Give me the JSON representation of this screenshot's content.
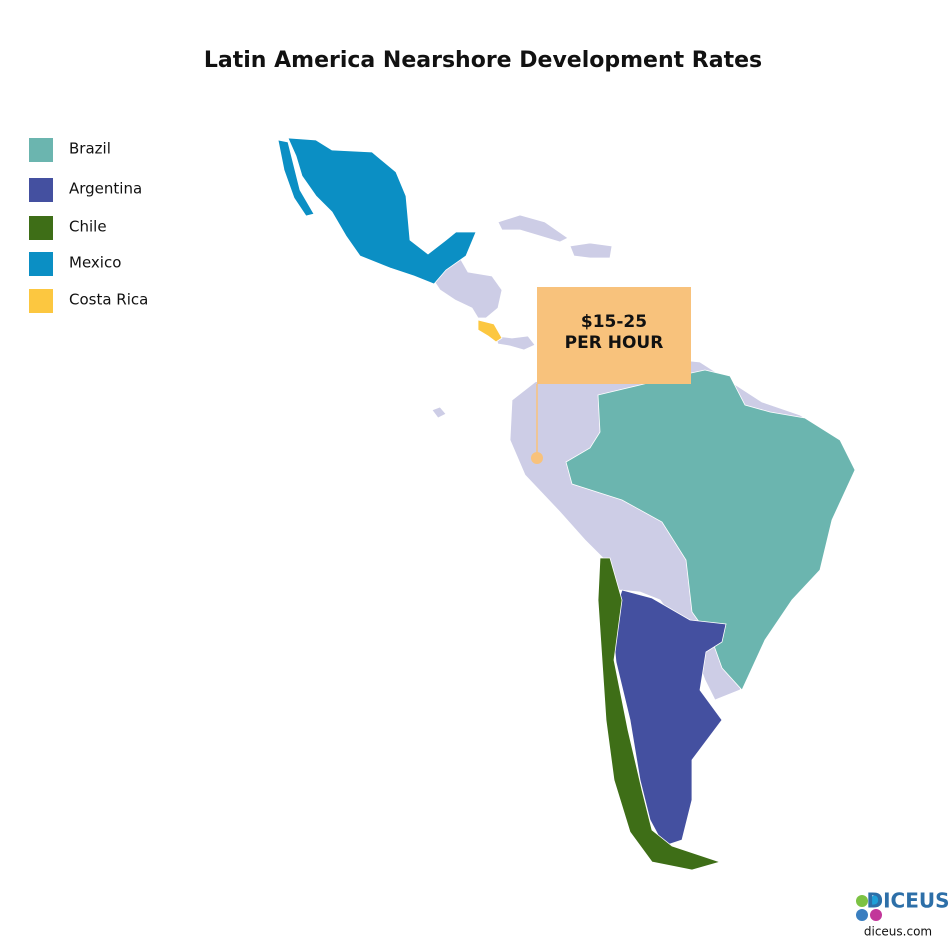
{
  "title": "Latin America Nearshore Development Rates",
  "legend": [
    {
      "label": "Brazil",
      "color": "#6bb5af"
    },
    {
      "label": "Argentina",
      "color": "#4450a0"
    },
    {
      "label": "Chile",
      "color": "#3e6e17"
    },
    {
      "label": "Mexico",
      "color": "#0b8fc4"
    },
    {
      "label": "Costa Rica",
      "color": "#fcc740"
    }
  ],
  "callout": {
    "lines": [
      "$15-25",
      "PER HOUR"
    ]
  },
  "logo": {
    "name": "DICEUS",
    "url": "diceus.com"
  }
}
